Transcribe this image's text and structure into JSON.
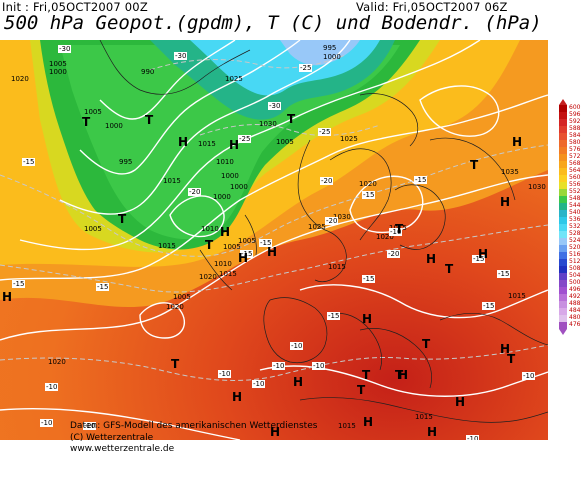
{
  "header": {
    "init": "Init : Fri,05OCT2007 00Z",
    "valid": "Valid: Fri,05OCT2007 06Z",
    "title": "500 hPa Geopot.(gpdm), T (C) und Bodendr. (hPa)"
  },
  "footer": {
    "line1": "Daten: GFS-Modell des amerikanischen Wetterdienstes",
    "line2": "(C) Wetterzentrale",
    "line3": "www.wetterzentrale.de"
  },
  "scale": {
    "labels": [
      "600",
      "596",
      "592",
      "588",
      "584",
      "580",
      "576",
      "572",
      "568",
      "564",
      "560",
      "556",
      "552",
      "548",
      "544",
      "540",
      "536",
      "532",
      "528",
      "524",
      "520",
      "516",
      "512",
      "508",
      "504",
      "500",
      "496",
      "492",
      "488",
      "484",
      "480",
      "476"
    ],
    "colors": [
      "#b00000",
      "#c41010",
      "#d42424",
      "#e03a2c",
      "#e85030",
      "#ee6a2c",
      "#f27c24",
      "#f5921e",
      "#f8a61c",
      "#fbbc1c",
      "#fcd020",
      "#e8e028",
      "#98d838",
      "#3cc848",
      "#24b488",
      "#28b4c8",
      "#2cc8e8",
      "#48d8f4",
      "#70e4f8",
      "#98c8f8",
      "#6aa0f0",
      "#4070e4",
      "#2848d0",
      "#2030c0",
      "#6040c8",
      "#8448c8",
      "#a050d0",
      "#b870d8",
      "#c890e0",
      "#d8a8e8",
      "#e0c0ec",
      "#a050c0"
    ]
  },
  "map": {
    "pressure_labels": [
      {
        "t": "995",
        "cls": "p"
      },
      {
        "t": "1000",
        "cls": "p"
      },
      {
        "t": "1005",
        "cls": "p"
      },
      {
        "t": "1000",
        "cls": "p"
      },
      {
        "t": "990",
        "cls": "p"
      },
      {
        "t": "1020",
        "cls": "p"
      },
      {
        "t": "1005",
        "cls": "p"
      },
      {
        "t": "1000",
        "cls": "p"
      },
      {
        "t": "1025",
        "cls": "p"
      },
      {
        "t": "1030",
        "cls": "p"
      },
      {
        "t": "1015",
        "cls": "p"
      },
      {
        "t": "1005",
        "cls": "p"
      },
      {
        "t": "1010",
        "cls": "p"
      },
      {
        "t": "1000",
        "cls": "p"
      },
      {
        "t": "995",
        "cls": "p"
      },
      {
        "t": "1015",
        "cls": "p"
      },
      {
        "t": "1000",
        "cls": "p"
      },
      {
        "t": "1000",
        "cls": "p"
      },
      {
        "t": "1005",
        "cls": "p"
      },
      {
        "t": "1010",
        "cls": "p"
      },
      {
        "t": "1015",
        "cls": "p"
      },
      {
        "t": "1005",
        "cls": "p"
      },
      {
        "t": "1005",
        "cls": "p"
      },
      {
        "t": "1010",
        "cls": "p"
      },
      {
        "t": "1015",
        "cls": "p"
      },
      {
        "t": "1020",
        "cls": "p"
      },
      {
        "t": "1025",
        "cls": "p"
      },
      {
        "t": "1030",
        "cls": "p"
      },
      {
        "t": "1025",
        "cls": "p"
      },
      {
        "t": "1020",
        "cls": "p"
      },
      {
        "t": "1020",
        "cls": "p"
      },
      {
        "t": "1015",
        "cls": "p"
      },
      {
        "t": "1035",
        "cls": "p"
      },
      {
        "t": "1030",
        "cls": "p"
      },
      {
        "t": "1005",
        "cls": "p"
      },
      {
        "t": "1020",
        "cls": "p"
      },
      {
        "t": "1015",
        "cls": "p"
      },
      {
        "t": "1020",
        "cls": "p"
      },
      {
        "t": "1015",
        "cls": "p"
      },
      {
        "t": "1015",
        "cls": "p"
      },
      {
        "t": "1015",
        "cls": "p"
      }
    ],
    "temp_labels": [
      "-30",
      "-30",
      "-30",
      "-25",
      "-25",
      "-25",
      "-20",
      "-20",
      "-20",
      "-20",
      "-15",
      "-15",
      "-15",
      "-15",
      "-15",
      "-15",
      "-15",
      "-15",
      "-15",
      "-15",
      "-15",
      "-15",
      "-10",
      "-10",
      "-10",
      "-10",
      "-10",
      "-10",
      "-10",
      "-10",
      "-10",
      "-10",
      "-10",
      "-10"
    ],
    "markers": [
      {
        "t": "T"
      },
      {
        "t": "T"
      },
      {
        "t": "H"
      },
      {
        "t": "H"
      },
      {
        "t": "T"
      },
      {
        "t": "T"
      },
      {
        "t": "T"
      },
      {
        "t": "H"
      },
      {
        "t": "H"
      },
      {
        "t": "H"
      },
      {
        "t": "T"
      },
      {
        "t": "H"
      },
      {
        "t": "H"
      },
      {
        "t": "T"
      },
      {
        "t": "T"
      },
      {
        "t": "H"
      },
      {
        "t": "H"
      },
      {
        "t": "H"
      },
      {
        "t": "T"
      },
      {
        "t": "H"
      },
      {
        "t": "H"
      },
      {
        "t": "T"
      },
      {
        "t": "H"
      },
      {
        "t": "T"
      },
      {
        "t": "T"
      },
      {
        "t": "H"
      },
      {
        "t": "H"
      },
      {
        "t": "T"
      },
      {
        "t": "H"
      },
      {
        "t": "H"
      },
      {
        "t": "H"
      },
      {
        "t": "T"
      },
      {
        "t": "H"
      }
    ]
  }
}
